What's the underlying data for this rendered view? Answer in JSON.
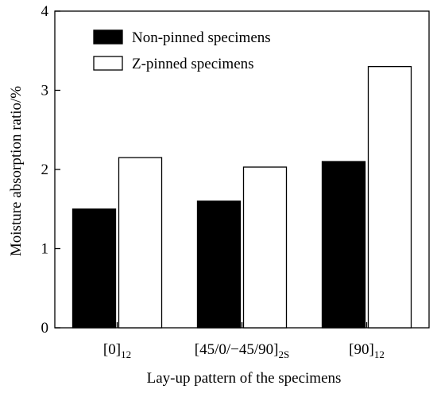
{
  "chart_data": {
    "type": "bar",
    "title": "",
    "xlabel": "Lay-up pattern of the specimens",
    "ylabel": "Moisture absorption ratio/%",
    "ylim": [
      0,
      4
    ],
    "yticks": [
      "0",
      "1",
      "2",
      "3",
      "4"
    ],
    "categories": [
      {
        "base": "[0]",
        "sub": "12"
      },
      {
        "base": "[45/0/−45/90]",
        "sub": "2S"
      },
      {
        "base": "[90]",
        "sub": "12"
      }
    ],
    "series": [
      {
        "name": "Non-pinned specimens",
        "fill": "#000000",
        "values": [
          1.5,
          1.6,
          2.1
        ]
      },
      {
        "name": "Z-pinned specimens",
        "fill": "#ffffff",
        "values": [
          2.15,
          2.03,
          3.3
        ]
      }
    ],
    "legend_position": "top-left",
    "grid": false
  }
}
